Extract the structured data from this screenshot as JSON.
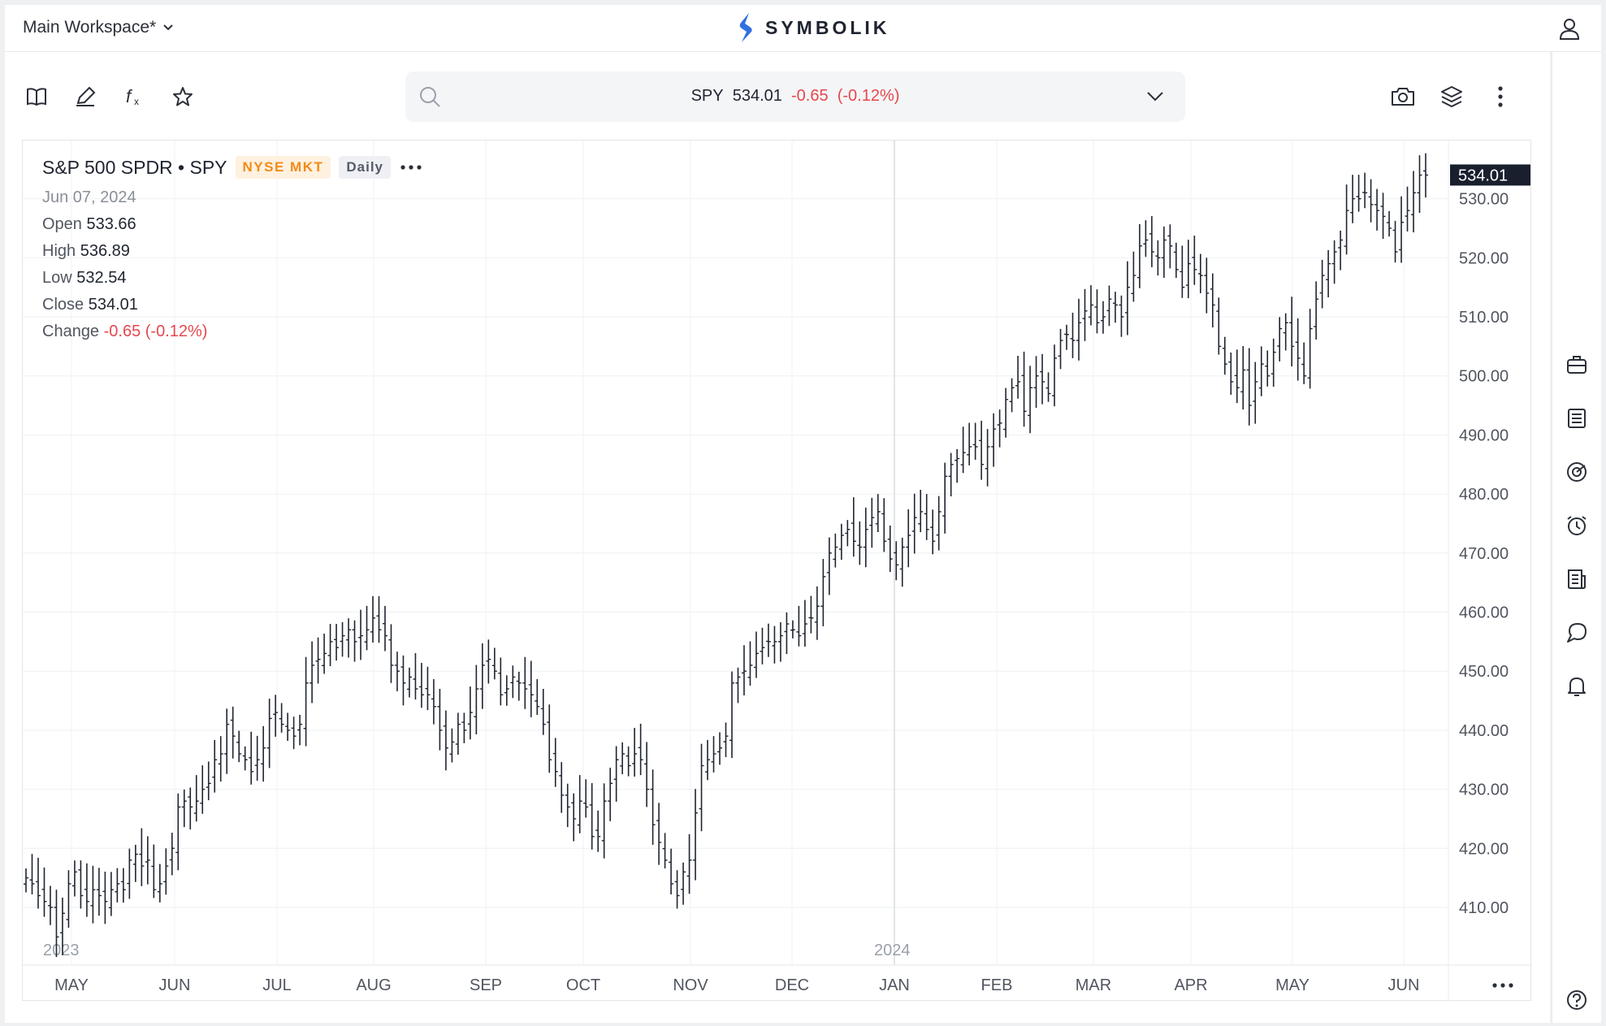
{
  "header": {
    "workspace": "Main Workspace*",
    "brand": "SYMBOLIK",
    "icons": {
      "workspace_caret": "chevron-down-icon",
      "logo": "symbolik-logo-icon",
      "user": "user-icon"
    }
  },
  "toolbar": {
    "left_icons": [
      "book-icon",
      "pencil-icon",
      "function-icon",
      "star-icon"
    ],
    "right_icons": [
      "camera-icon",
      "layers-icon",
      "more-vertical-icon"
    ]
  },
  "search": {
    "symbol": "SPY",
    "last": "534.01",
    "change": "-0.65",
    "change_pct": "(-0.12%)"
  },
  "legend": {
    "title": "S&P 500 SPDR • SPY",
    "exchange": "NYSE MKT",
    "interval": "Daily",
    "date": "Jun 07, 2024",
    "open_label": "Open",
    "open": "533.66",
    "high_label": "High",
    "high": "536.89",
    "low_label": "Low",
    "low": "532.54",
    "close_label": "Close",
    "close": "534.01",
    "change_label": "Change",
    "change": "-0.65 (-0.12%)"
  },
  "right_sidebar": [
    "briefcase-icon",
    "list-icon",
    "gauge-icon",
    "alarm-icon",
    "news-icon",
    "chat-icon",
    "bell-icon",
    "help-icon"
  ],
  "colors": {
    "negative": "#e5484d",
    "bars": "#1f2430",
    "price_tag": "#1a1f2e",
    "exchange_badge": "#f08c1a"
  },
  "chart_data": {
    "type": "ohlc",
    "symbol": "SPY",
    "interval": "Daily",
    "ylim": [
      402,
      537
    ],
    "y_ticks": [
      "410.00",
      "420.00",
      "430.00",
      "440.00",
      "450.00",
      "460.00",
      "470.00",
      "480.00",
      "490.00",
      "500.00",
      "510.00",
      "520.00",
      "530.00"
    ],
    "last_price": "534.01",
    "x_month_labels": [
      "MAY",
      "JUN",
      "JUL",
      "AUG",
      "SEP",
      "OCT",
      "NOV",
      "DEC",
      "JAN",
      "FEB",
      "MAR",
      "APR",
      "MAY",
      "JUN"
    ],
    "year_labels": [
      "2023",
      "2024"
    ],
    "grid": "on",
    "closes": [
      415,
      414,
      412,
      411,
      410,
      405,
      409,
      414,
      416,
      412,
      411,
      413,
      412,
      411,
      413,
      414,
      413,
      418,
      419,
      417,
      418,
      413,
      414,
      417,
      420,
      427,
      428,
      427,
      428,
      430,
      431,
      435,
      436,
      441,
      439,
      436,
      435,
      433,
      435,
      437,
      442,
      443,
      441,
      440,
      439,
      441,
      448,
      451,
      452,
      453,
      455,
      454,
      456,
      457,
      455,
      456,
      457,
      459,
      457,
      456,
      451,
      450,
      448,
      449,
      447,
      446,
      446,
      444,
      440,
      437,
      438,
      441,
      440,
      443,
      447,
      451,
      452,
      450,
      446,
      447,
      449,
      448,
      447,
      446,
      444,
      441,
      435,
      433,
      429,
      427,
      425,
      428,
      427,
      422,
      422,
      428,
      431,
      435,
      436,
      434,
      436,
      435,
      430,
      424,
      421,
      418,
      414,
      412,
      416,
      418,
      426,
      434,
      435,
      436,
      437,
      439,
      448,
      449,
      450,
      451,
      453,
      454,
      455,
      455,
      456,
      458,
      457,
      456,
      458,
      459,
      461,
      466,
      470,
      471,
      473,
      474,
      472,
      471,
      474,
      476,
      477,
      472,
      469,
      468,
      471,
      473,
      476,
      477,
      474,
      472,
      477,
      483,
      485,
      486,
      487,
      488,
      488,
      485,
      488,
      491,
      492,
      496,
      498,
      499,
      494,
      498,
      500,
      499,
      497,
      503,
      506,
      507,
      506,
      509,
      511,
      512,
      509,
      510,
      513,
      512,
      510,
      515,
      517,
      522,
      523,
      521,
      520,
      523,
      522,
      518,
      515,
      519,
      518,
      517,
      514,
      512,
      505,
      502,
      499,
      498,
      501,
      495,
      499,
      502,
      500,
      504,
      508,
      509,
      505,
      503,
      500,
      508,
      513,
      517,
      519,
      521,
      523,
      528,
      530,
      530,
      531,
      529,
      528,
      527,
      525,
      521,
      526,
      528,
      531,
      534,
      534
    ]
  }
}
